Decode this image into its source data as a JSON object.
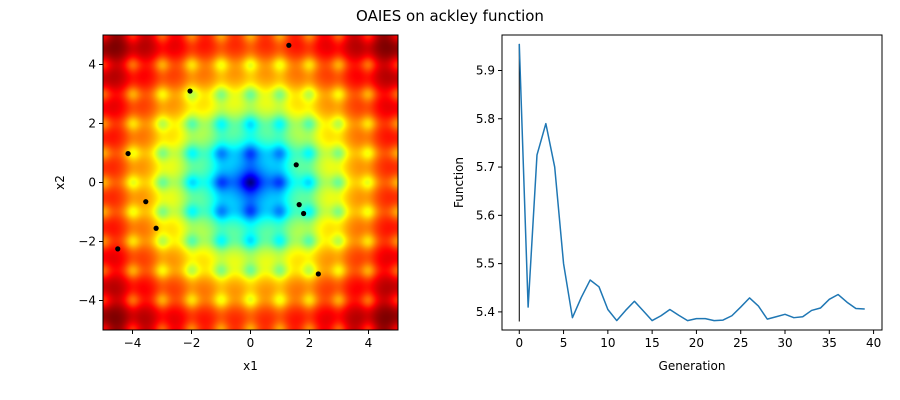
{
  "figure": {
    "title": "OAIES on ackley function"
  },
  "chart_data": [
    {
      "type": "heatmap",
      "function": "ackley",
      "colormap": "jet",
      "xlabel": "x1",
      "ylabel": "x2",
      "xlim": [
        -5,
        5
      ],
      "ylim": [
        -5,
        5
      ],
      "xticks": [
        -4,
        -2,
        0,
        2,
        4
      ],
      "yticks": [
        -4,
        -2,
        0,
        2,
        4
      ],
      "xtick_labels": [
        "−4",
        "−2",
        "0",
        "2",
        "4"
      ],
      "ytick_labels": [
        "−4",
        "−2",
        "0",
        "2",
        "4"
      ],
      "grid": false,
      "points": [
        {
          "x": 1.3,
          "y": 4.65
        },
        {
          "x": -2.05,
          "y": 3.1
        },
        {
          "x": -4.15,
          "y": 0.98
        },
        {
          "x": 1.55,
          "y": 0.6
        },
        {
          "x": -3.55,
          "y": -0.65
        },
        {
          "x": 1.65,
          "y": -0.75
        },
        {
          "x": 1.8,
          "y": -1.05
        },
        {
          "x": -3.2,
          "y": -1.55
        },
        {
          "x": -4.5,
          "y": -2.25
        },
        {
          "x": 2.3,
          "y": -3.1
        }
      ],
      "point_color": "#000000"
    },
    {
      "type": "line",
      "xlabel": "Generation",
      "ylabel": "Function",
      "xlim": [
        -1.95,
        40.95
      ],
      "ylim": [
        5.3625,
        5.9735
      ],
      "xticks": [
        0,
        5,
        10,
        15,
        20,
        25,
        30,
        35,
        40
      ],
      "xtick_labels": [
        "0",
        "5",
        "10",
        "15",
        "20",
        "25",
        "30",
        "35",
        "40"
      ],
      "yticks": [
        5.4,
        5.5,
        5.6,
        5.7,
        5.8,
        5.9
      ],
      "ytick_labels": [
        "5.4",
        "5.5",
        "5.6",
        "5.7",
        "5.8",
        "5.9"
      ],
      "grid": false,
      "series": [
        {
          "color": "#1f77b4",
          "x": [
            0,
            1,
            2,
            3,
            4,
            5,
            6,
            7,
            8,
            9,
            10,
            11,
            12,
            13,
            14,
            15,
            16,
            17,
            18,
            19,
            20,
            21,
            22,
            23,
            24,
            25,
            26,
            27,
            28,
            29,
            30,
            31,
            32,
            33,
            34,
            35,
            36,
            37,
            38,
            39
          ],
          "values": [
            5.955,
            5.41,
            5.725,
            5.79,
            5.7,
            5.5,
            5.388,
            5.43,
            5.466,
            5.452,
            5.405,
            5.382,
            5.403,
            5.422,
            5.402,
            5.382,
            5.392,
            5.405,
            5.393,
            5.382,
            5.386,
            5.386,
            5.382,
            5.383,
            5.392,
            5.41,
            5.429,
            5.412,
            5.385,
            5.39,
            5.395,
            5.388,
            5.39,
            5.403,
            5.408,
            5.426,
            5.436,
            5.42,
            5.407,
            5.406
          ]
        }
      ],
      "marker_line": {
        "x": 0,
        "y_from": 5.38,
        "y_to": 5.955,
        "color": "#000000"
      }
    }
  ]
}
